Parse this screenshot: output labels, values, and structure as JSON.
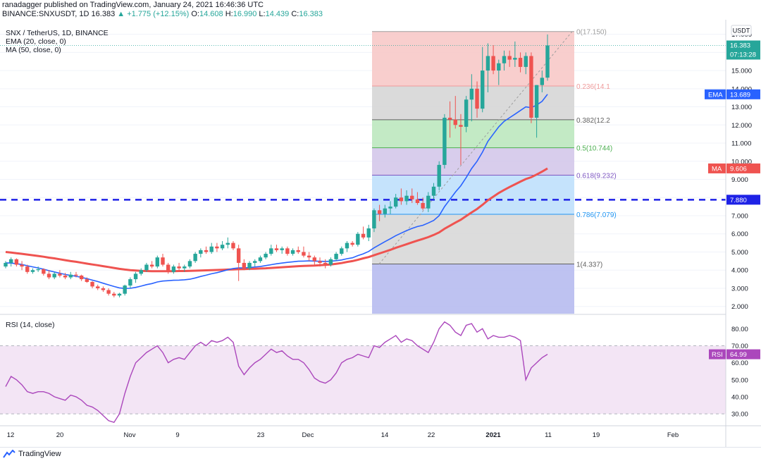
{
  "header": {
    "published": "ranadagger published on TradingView.com, January 24, 2021 16:46:36 UTC",
    "symbol": "BINANCE:SNXUSDT, 1D",
    "price": "16.383",
    "change": "+1.775 (+12.15%)",
    "ohlc": {
      "O": "14.608",
      "H": "16.990",
      "L": "14.439",
      "C": "16.383"
    }
  },
  "legend": {
    "title": "SNX / TetherUS, 1D, BINANCE",
    "ema": "EMA (20, close, 0)",
    "ma": "MA (50, close, 0)",
    "rsi": "RSI (14, close)"
  },
  "footer": {
    "brand": "TradingView"
  },
  "colors": {
    "up": "#26a69a",
    "down": "#ef5350",
    "ema": "#2962ff",
    "ma": "#ef5350",
    "rsi": "#ab47bc",
    "hline": "#1e22e6"
  },
  "chart_data": [
    {
      "type": "candlestick",
      "title": "SNX / TetherUS, 1D, BINANCE",
      "currency": "USDT",
      "price_ticks": [
        "2.000",
        "3.000",
        "4.000",
        "5.000",
        "6.000",
        "7.000",
        "8.000",
        "9.000",
        "10.000",
        "11.000",
        "12.000",
        "13.000",
        "14.000",
        "15.000",
        "16.000",
        "17.000"
      ],
      "date_ticks": [
        "12",
        "20",
        "Nov",
        "9",
        "23",
        "Dec",
        "14",
        "22",
        "2021",
        "11",
        "19",
        "Feb"
      ],
      "ylim": [
        1.6,
        17.8
      ],
      "start_date": "2020-10-04",
      "candles": [
        [
          4.2,
          4.5,
          4.1,
          4.4
        ],
        [
          4.4,
          4.7,
          4.2,
          4.6
        ],
        [
          4.6,
          4.65,
          4.2,
          4.3
        ],
        [
          4.3,
          4.5,
          4.0,
          4.2
        ],
        [
          4.2,
          4.3,
          3.8,
          3.9
        ],
        [
          3.9,
          4.1,
          3.8,
          4.0
        ],
        [
          4.0,
          4.2,
          3.9,
          4.05
        ],
        [
          4.05,
          4.1,
          3.7,
          3.8
        ],
        [
          3.8,
          4.0,
          3.5,
          3.6
        ],
        [
          3.6,
          3.9,
          3.5,
          3.8
        ],
        [
          3.8,
          4.0,
          3.6,
          3.7
        ],
        [
          3.7,
          3.85,
          3.5,
          3.6
        ],
        [
          3.6,
          3.9,
          3.5,
          3.75
        ],
        [
          3.75,
          3.9,
          3.6,
          3.7
        ],
        [
          3.7,
          3.75,
          3.4,
          3.5
        ],
        [
          3.5,
          3.6,
          3.3,
          3.35
        ],
        [
          3.35,
          3.4,
          3.0,
          3.1
        ],
        [
          3.1,
          3.2,
          2.9,
          3.0
        ],
        [
          3.0,
          3.1,
          2.8,
          2.9
        ],
        [
          2.9,
          3.0,
          2.6,
          2.7
        ],
        [
          2.7,
          2.8,
          2.5,
          2.6
        ],
        [
          2.6,
          2.75,
          2.5,
          2.7
        ],
        [
          2.7,
          3.2,
          2.6,
          3.15
        ],
        [
          3.15,
          3.6,
          3.0,
          3.5
        ],
        [
          3.5,
          3.9,
          3.3,
          3.8
        ],
        [
          3.8,
          4.1,
          3.7,
          4.0
        ],
        [
          4.0,
          4.4,
          3.9,
          4.3
        ],
        [
          4.3,
          4.5,
          4.1,
          4.2
        ],
        [
          4.2,
          4.8,
          4.1,
          4.7
        ],
        [
          4.7,
          4.9,
          4.2,
          4.3
        ],
        [
          4.3,
          4.4,
          3.8,
          3.9
        ],
        [
          3.9,
          4.3,
          3.8,
          4.2
        ],
        [
          4.2,
          4.4,
          4.0,
          4.1
        ],
        [
          4.1,
          4.3,
          3.9,
          4.2
        ],
        [
          4.2,
          4.6,
          4.1,
          4.5
        ],
        [
          4.5,
          5.0,
          4.4,
          4.9
        ],
        [
          4.9,
          5.2,
          4.7,
          5.1
        ],
        [
          5.1,
          5.3,
          4.9,
          5.0
        ],
        [
          5.0,
          5.5,
          4.9,
          5.3
        ],
        [
          5.3,
          5.5,
          5.0,
          5.2
        ],
        [
          5.2,
          5.6,
          5.1,
          5.4
        ],
        [
          5.4,
          5.8,
          5.2,
          5.5
        ],
        [
          5.5,
          5.6,
          5.1,
          5.2
        ],
        [
          5.2,
          5.4,
          3.4,
          4.4
        ],
        [
          4.4,
          4.6,
          4.0,
          4.1
        ],
        [
          4.1,
          4.5,
          4.0,
          4.4
        ],
        [
          4.4,
          4.6,
          4.2,
          4.5
        ],
        [
          4.5,
          4.8,
          4.4,
          4.7
        ],
        [
          4.7,
          5.0,
          4.6,
          4.9
        ],
        [
          4.9,
          5.4,
          4.8,
          5.2
        ],
        [
          5.2,
          5.4,
          5.0,
          5.1
        ],
        [
          5.1,
          5.3,
          4.9,
          5.2
        ],
        [
          5.2,
          5.3,
          4.8,
          4.9
        ],
        [
          4.9,
          5.2,
          4.8,
          5.1
        ],
        [
          5.1,
          5.3,
          4.9,
          5.0
        ],
        [
          5.0,
          5.3,
          4.7,
          4.8
        ],
        [
          4.8,
          5.0,
          4.5,
          4.7
        ],
        [
          4.7,
          4.8,
          4.3,
          4.5
        ],
        [
          4.5,
          4.7,
          4.2,
          4.4
        ],
        [
          4.4,
          4.6,
          4.1,
          4.3
        ],
        [
          4.3,
          4.7,
          4.2,
          4.6
        ],
        [
          4.6,
          5.0,
          4.5,
          4.9
        ],
        [
          4.9,
          5.3,
          4.8,
          5.2
        ],
        [
          5.2,
          5.6,
          5.0,
          5.5
        ],
        [
          5.5,
          5.6,
          5.3,
          5.4
        ],
        [
          5.4,
          6.1,
          5.3,
          6.0
        ],
        [
          6.0,
          6.4,
          5.7,
          5.8
        ],
        [
          5.8,
          6.5,
          5.6,
          6.3
        ],
        [
          6.3,
          7.4,
          6.1,
          7.3
        ],
        [
          7.3,
          7.6,
          6.7,
          7.1
        ],
        [
          7.1,
          7.6,
          6.9,
          7.4
        ],
        [
          7.4,
          7.8,
          7.1,
          7.5
        ],
        [
          7.5,
          8.2,
          7.4,
          8.0
        ],
        [
          8.0,
          8.5,
          7.6,
          7.8
        ],
        [
          7.8,
          8.4,
          7.6,
          8.1
        ],
        [
          8.1,
          8.5,
          7.7,
          7.9
        ],
        [
          7.9,
          8.3,
          7.6,
          7.7
        ],
        [
          7.7,
          8.0,
          7.3,
          7.4
        ],
        [
          7.4,
          8.3,
          7.2,
          8.1
        ],
        [
          8.1,
          8.8,
          7.9,
          8.6
        ],
        [
          8.6,
          10.0,
          8.4,
          9.8
        ],
        [
          9.8,
          12.6,
          9.6,
          12.4
        ],
        [
          12.4,
          13.3,
          11.3,
          12.3
        ],
        [
          12.3,
          13.6,
          11.8,
          12.0
        ],
        [
          12.0,
          12.6,
          9.8,
          11.9
        ],
        [
          11.9,
          13.6,
          11.6,
          13.4
        ],
        [
          13.4,
          14.8,
          12.2,
          14.0
        ],
        [
          14.0,
          14.4,
          12.4,
          12.9
        ],
        [
          12.9,
          16.3,
          12.7,
          15.0
        ],
        [
          15.0,
          16.5,
          13.8,
          15.8
        ],
        [
          15.8,
          16.4,
          14.8,
          15.0
        ],
        [
          15.0,
          15.6,
          14.2,
          15.4
        ],
        [
          15.4,
          16.1,
          15.0,
          15.8
        ],
        [
          15.8,
          16.1,
          15.2,
          15.6
        ],
        [
          15.6,
          16.6,
          15.2,
          15.7
        ],
        [
          15.7,
          16.0,
          14.9,
          15.2
        ],
        [
          15.2,
          16.0,
          14.8,
          15.8
        ],
        [
          15.8,
          16.0,
          12.1,
          12.4
        ],
        [
          12.4,
          14.2,
          11.3,
          14.2
        ],
        [
          14.2,
          15.0,
          13.8,
          14.6
        ],
        [
          14.608,
          16.99,
          14.439,
          16.383
        ]
      ],
      "ema": [
        4.4,
        4.39,
        4.35,
        4.31,
        4.24,
        4.18,
        4.12,
        4.05,
        3.97,
        3.9,
        3.83,
        3.76,
        3.71,
        3.66,
        3.6,
        3.53,
        3.45,
        3.37,
        3.28,
        3.19,
        3.1,
        3.02,
        2.99,
        3.0,
        3.05,
        3.12,
        3.2,
        3.26,
        3.35,
        3.4,
        3.42,
        3.44,
        3.45,
        3.47,
        3.5,
        3.57,
        3.65,
        3.72,
        3.8,
        3.86,
        3.94,
        4.02,
        4.09,
        4.12,
        4.12,
        4.14,
        4.17,
        4.2,
        4.25,
        4.3,
        4.35,
        4.39,
        4.43,
        4.46,
        4.49,
        4.5,
        4.51,
        4.5,
        4.49,
        4.48,
        4.49,
        4.52,
        4.56,
        4.63,
        4.68,
        4.8,
        4.9,
        5.03,
        5.23,
        5.4,
        5.57,
        5.73,
        5.9,
        6.04,
        6.18,
        6.3,
        6.4,
        6.47,
        6.6,
        6.74,
        7.0,
        7.5,
        7.9,
        8.3,
        8.65,
        9.1,
        9.6,
        10.0,
        10.5,
        11.1,
        11.5,
        11.9,
        12.2,
        12.4,
        12.6,
        12.8,
        13.0,
        12.95,
        13.1,
        13.3,
        13.689
      ],
      "ma": [
        5.0,
        4.97,
        4.93,
        4.9,
        4.86,
        4.82,
        4.78,
        4.74,
        4.69,
        4.65,
        4.6,
        4.55,
        4.5,
        4.46,
        4.41,
        4.36,
        4.31,
        4.27,
        4.22,
        4.17,
        4.12,
        4.07,
        4.03,
        4.0,
        3.98,
        3.96,
        3.95,
        3.94,
        3.94,
        3.94,
        3.94,
        3.94,
        3.95,
        3.95,
        3.96,
        3.97,
        3.98,
        3.99,
        4.0,
        4.01,
        4.02,
        4.03,
        4.04,
        4.05,
        4.06,
        4.07,
        4.08,
        4.09,
        4.1,
        4.12,
        4.14,
        4.16,
        4.18,
        4.2,
        4.22,
        4.23,
        4.24,
        4.25,
        4.27,
        4.29,
        4.31,
        4.35,
        4.39,
        4.45,
        4.5,
        4.57,
        4.65,
        4.72,
        4.82,
        4.92,
        5.02,
        5.12,
        5.23,
        5.33,
        5.43,
        5.53,
        5.63,
        5.72,
        5.82,
        5.94,
        6.08,
        6.28,
        6.45,
        6.62,
        6.78,
        6.98,
        7.18,
        7.37,
        7.6,
        7.85,
        8.05,
        8.25,
        8.42,
        8.58,
        8.73,
        8.88,
        9.02,
        9.12,
        9.27,
        9.43,
        9.606
      ],
      "fibonacci": [
        {
          "label": "0(17.150)",
          "price": 17.15,
          "color": "#9e9e9e",
          "fill": "#f7c5c4"
        },
        {
          "label": "0.236(14.1",
          "price": 14.146,
          "color": "#ef9a9a",
          "fill": "#d3d3d3"
        },
        {
          "label": "0.382(12.2",
          "price": 12.288,
          "color": "#616161",
          "fill": "#b9e6bb"
        },
        {
          "label": "0.5(10.744)",
          "price": 10.744,
          "color": "#4caf50",
          "fill": "#d1c4e9"
        },
        {
          "label": "0.618(9.232)",
          "price": 9.232,
          "color": "#7e57c2",
          "fill": "#bbdefb"
        },
        {
          "label": "0.786(7.079)",
          "price": 7.079,
          "color": "#2196f3",
          "fill": "#d6d6d6"
        },
        {
          "label": "1(4.337)",
          "price": 4.337,
          "color": "#616161",
          "fill": "#b3b7ee"
        }
      ],
      "horizontal_line": {
        "value": 7.88,
        "label": "7.880"
      },
      "price_labels": {
        "last": "16.383",
        "countdown": "07:13:28",
        "ema": "EMA",
        "ema_value": "13.689",
        "ma": "MA",
        "ma_value": "9.606"
      }
    },
    {
      "type": "line",
      "title": "RSI (14, close)",
      "ticks": [
        "30.00",
        "40.00",
        "50.00",
        "60.00",
        "70.00",
        "80.00"
      ],
      "ylim": [
        23,
        88
      ],
      "band": [
        30,
        70
      ],
      "values": [
        46,
        52,
        50,
        47,
        43,
        42,
        43,
        43,
        42,
        40,
        39,
        38,
        41,
        40,
        38,
        35,
        34,
        32,
        29,
        26,
        25,
        30,
        42,
        52,
        60,
        63,
        66,
        68,
        70,
        66,
        60,
        62,
        63,
        62,
        66,
        70,
        72,
        70,
        73,
        72,
        73,
        75,
        72,
        58,
        53,
        57,
        60,
        62,
        65,
        68,
        66,
        67,
        64,
        62,
        62,
        60,
        56,
        51,
        49,
        48,
        50,
        54,
        60,
        62,
        63,
        65,
        64,
        63,
        70,
        69,
        72,
        74,
        76,
        72,
        74,
        73,
        70,
        68,
        66,
        72,
        80,
        84,
        82,
        78,
        76,
        82,
        83,
        78,
        80,
        74,
        76,
        75,
        75,
        76,
        75,
        73,
        50,
        57,
        60,
        63,
        64.99
      ],
      "value_label": "RSI",
      "value_text": "64.99"
    }
  ]
}
